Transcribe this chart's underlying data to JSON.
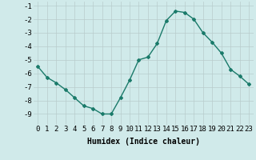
{
  "x": [
    0,
    1,
    2,
    3,
    4,
    5,
    6,
    7,
    8,
    9,
    10,
    11,
    12,
    13,
    14,
    15,
    16,
    17,
    18,
    19,
    20,
    21,
    22,
    23
  ],
  "y": [
    -5.5,
    -6.3,
    -6.7,
    -7.2,
    -7.8,
    -8.4,
    -8.6,
    -9.0,
    -9.0,
    -7.8,
    -6.5,
    -5.0,
    -4.8,
    -3.8,
    -2.1,
    -1.4,
    -1.5,
    -2.0,
    -3.0,
    -3.7,
    -4.5,
    -5.7,
    -6.2,
    -6.8
  ],
  "line_color": "#1a7a6a",
  "marker": "D",
  "marker_size": 2.0,
  "bg_color": "#d0eaea",
  "grid_color": "#b8cccc",
  "xlabel": "Humidex (Indice chaleur)",
  "ylim": [
    -9.8,
    -0.7
  ],
  "xlim": [
    -0.5,
    23.5
  ],
  "yticks": [
    -9,
    -8,
    -7,
    -6,
    -5,
    -4,
    -3,
    -2,
    -1
  ],
  "xticks": [
    0,
    1,
    2,
    3,
    4,
    5,
    6,
    7,
    8,
    9,
    10,
    11,
    12,
    13,
    14,
    15,
    16,
    17,
    18,
    19,
    20,
    21,
    22,
    23
  ],
  "xlabel_fontsize": 7,
  "tick_fontsize": 6.5,
  "line_width": 1.0
}
